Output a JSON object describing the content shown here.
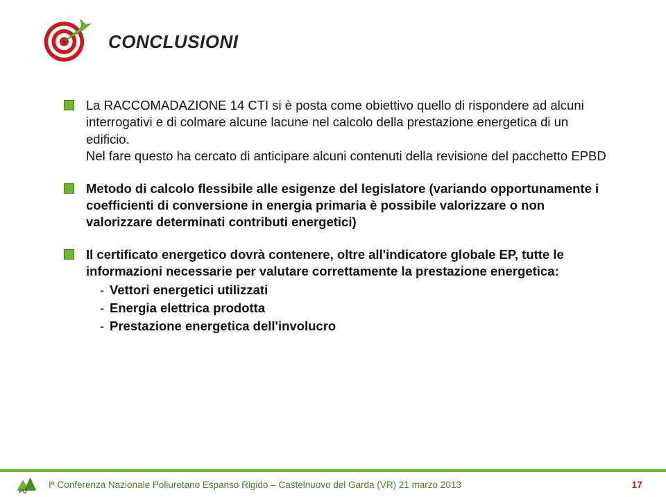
{
  "title": "CONCLUSIONI",
  "bullets": [
    {
      "html": "La RACCOMADAZIONE 14 CTI si è posta come obiettivo quello di rispondere ad alcuni interrogativi e di colmare alcune lacune nel calcolo della prestazione energetica di un edificio.<br>Nel fare questo ha cercato di anticipare alcuni contenuti della revisione del pacchetto EPBD"
    },
    {
      "html": "<b>Metodo di calcolo flessibile alle esigenze del legislatore (variando opportunamente i coefficienti di conversione in energia primaria è possibile valorizzare o non valorizzare determinati contributi energetici)</b>"
    },
    {
      "html": "<b>Il certificato energetico dovrà contenere, oltre all'indicatore globale EP, tutte le informazioni  necessarie per valutare correttamente la prestazione energetica:</b>",
      "subs": [
        "<b>Vettori energetici utilizzati</b>",
        "<b>Energia elettrica prodotta</b>",
        "<b>Prestazione energetica dell'involucro</b>"
      ]
    }
  ],
  "footer": {
    "text": "Iª Conferenza Nazionale Poliuretano Espanso Rigido – Castelnuovo del Garda (VR) 21 marzo 2013",
    "page": "17"
  },
  "colors": {
    "accent_green": "#6fb82b",
    "footer_text": "#4a7a2a",
    "page_red": "#b02020",
    "target_red": "#c41e1e",
    "arrow_green": "#6fb82b"
  }
}
